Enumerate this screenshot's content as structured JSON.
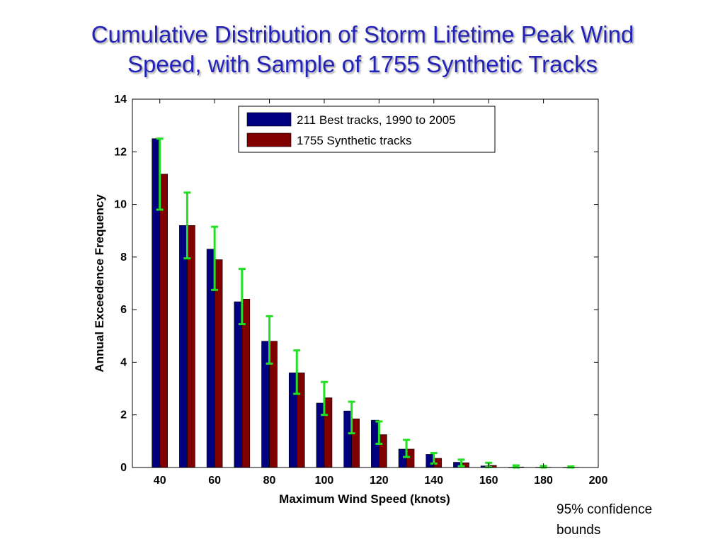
{
  "slide": {
    "title_line1": "Cumulative Distribution of Storm Lifetime Peak Wind",
    "title_line2": "Speed, with Sample of 1755 Synthetic Tracks",
    "note_line1": "95% confidence",
    "note_line2": "bounds"
  },
  "chart_data": {
    "type": "bar",
    "xlabel": "Maximum Wind Speed (knots)",
    "ylabel": "Annual Exceedence Frequency",
    "xlim": [
      30,
      200
    ],
    "ylim": [
      0,
      14
    ],
    "xticks": [
      40,
      60,
      80,
      100,
      120,
      140,
      160,
      180,
      200
    ],
    "yticks": [
      0,
      2,
      4,
      6,
      8,
      10,
      12,
      14
    ],
    "grid": false,
    "legend_position": "top-center",
    "categories": [
      40,
      50,
      60,
      70,
      80,
      90,
      100,
      110,
      120,
      130,
      140,
      150,
      160,
      170,
      180,
      190
    ],
    "series": [
      {
        "name": "211 Best tracks, 1990 to 2005",
        "color": "#000080",
        "values": [
          12.5,
          9.2,
          8.3,
          6.3,
          4.8,
          3.6,
          2.45,
          2.15,
          1.8,
          0.7,
          0.5,
          0.2,
          0.06,
          0,
          0,
          0
        ]
      },
      {
        "name": "1755 Synthetic tracks",
        "color": "#800000",
        "values": [
          11.15,
          9.2,
          7.9,
          6.4,
          4.8,
          3.6,
          2.65,
          1.85,
          1.25,
          0.7,
          0.35,
          0.18,
          0.08,
          0.02,
          0.01,
          0.01
        ]
      }
    ],
    "error_bars": {
      "color": "#22e022",
      "lower": [
        9.8,
        7.95,
        6.75,
        5.45,
        3.95,
        2.8,
        2.0,
        1.3,
        0.9,
        0.4,
        0.15,
        0.05,
        0.01,
        0.0,
        0.0,
        0.0
      ],
      "upper": [
        12.5,
        10.45,
        9.15,
        7.55,
        5.75,
        4.45,
        3.25,
        2.5,
        1.75,
        1.05,
        0.55,
        0.3,
        0.18,
        0.08,
        0.06,
        0.04
      ]
    }
  }
}
